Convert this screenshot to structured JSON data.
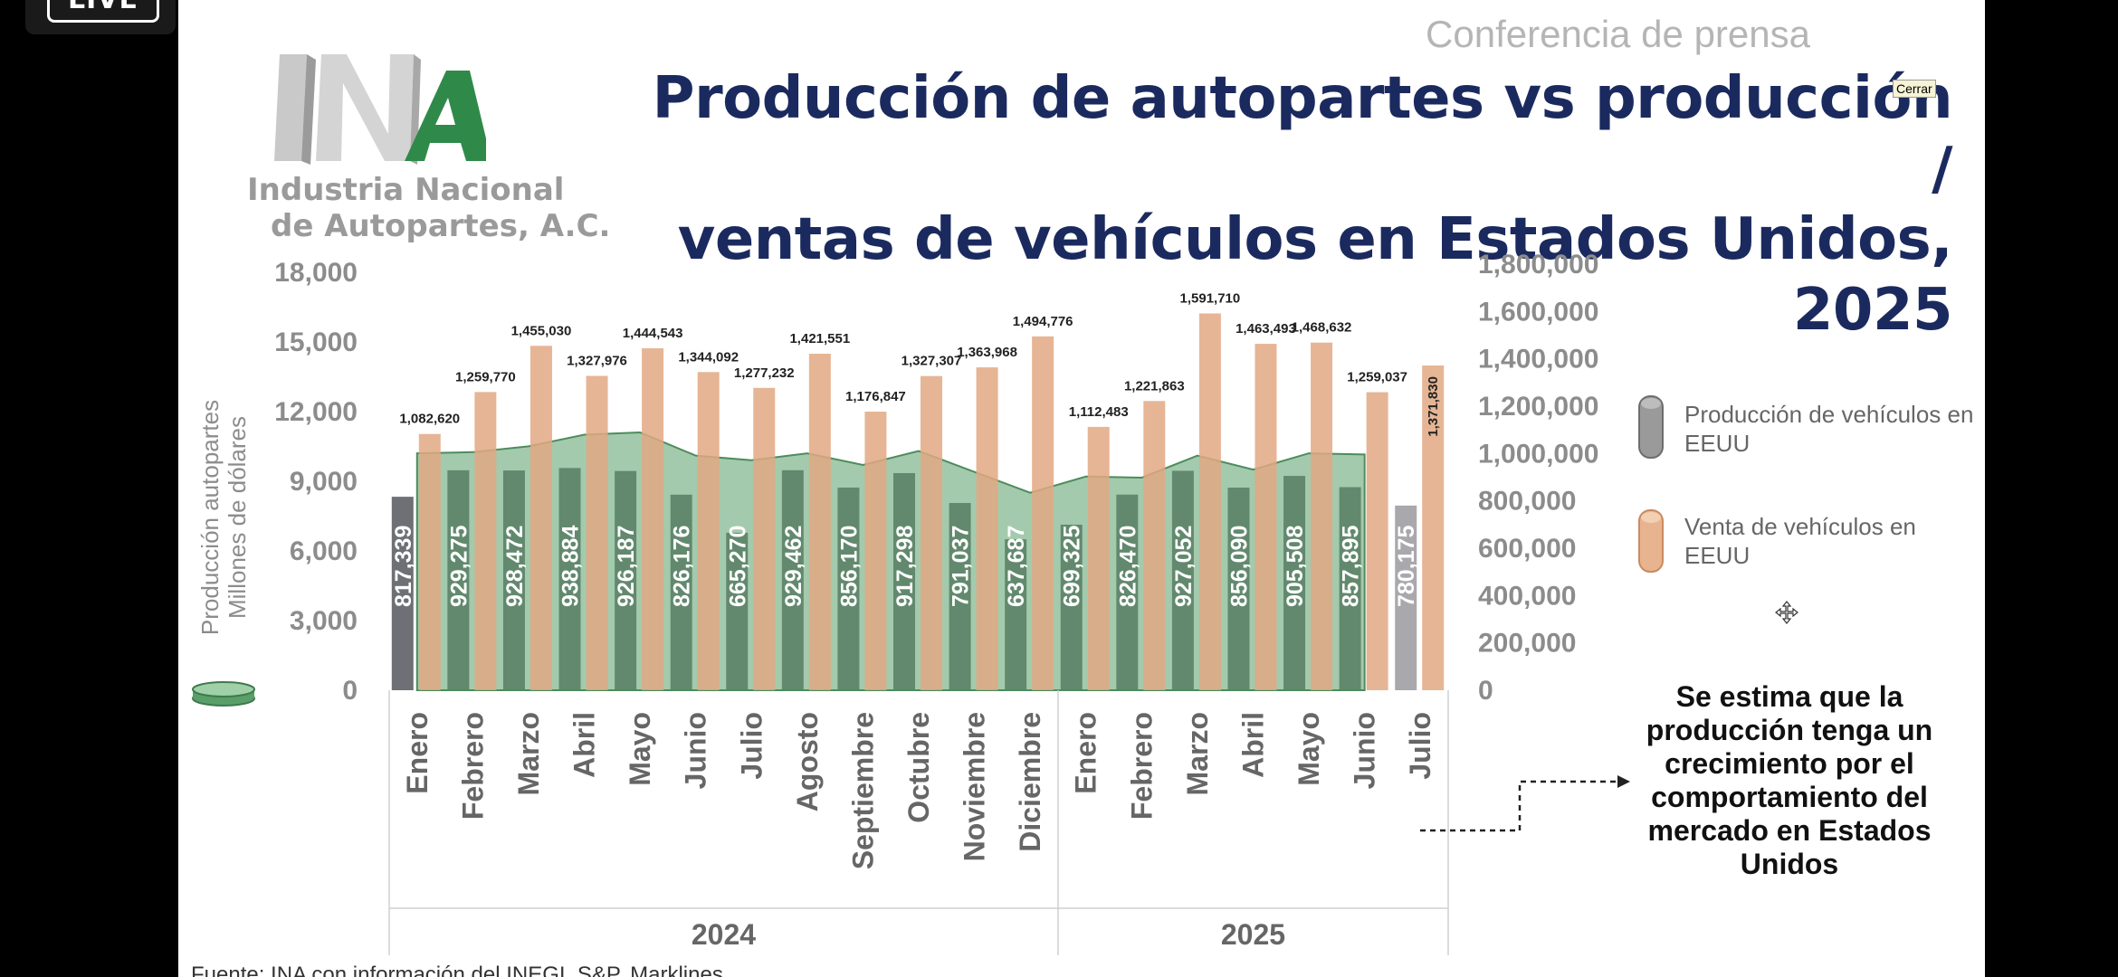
{
  "live_badge": "LIVE",
  "header": {
    "conference": "Conferencia de prensa",
    "title_line1": "Producción de autopartes vs producción /",
    "title_line2": "ventas de vehículos en Estados Unidos, 2025",
    "close_tooltip": "Cerrar"
  },
  "logo": {
    "monogram": "INA",
    "line1": "Industria Nacional",
    "line2": "de Autopartes, A.C."
  },
  "colors": {
    "production_bar": "#8a8a8a",
    "sales_bar": "#e2a882",
    "autoparts_area": "#5a9e6a",
    "title": "#1b2a5e"
  },
  "chart_data": {
    "type": "bar",
    "left_axis_label_line1": "Producción autopartes",
    "left_axis_label_line2": "Millones de dólares",
    "left_ylim": [
      0,
      19200
    ],
    "left_ticks": [
      "0",
      "3,000",
      "6,000",
      "9,000",
      "12,000",
      "15,000",
      "18,000"
    ],
    "right_ylim": [
      0,
      1800000
    ],
    "right_ticks": [
      "0",
      "200,000",
      "400,000",
      "600,000",
      "800,000",
      "1,000,000",
      "1,200,000",
      "1,400,000",
      "1,600,000",
      "1,800,000"
    ],
    "grid": false,
    "categories": [
      "Enero",
      "Febrero",
      "Marzo",
      "Abril",
      "Mayo",
      "Junio",
      "Julio",
      "Agosto",
      "Septiembre",
      "Octubre",
      "Noviembre",
      "Diciembre",
      "Enero",
      "Febrero",
      "Marzo",
      "Abril",
      "Mayo",
      "Junio",
      "Julio"
    ],
    "groups": [
      {
        "label": "2024",
        "count": 12
      },
      {
        "label": "2025",
        "count": 7
      }
    ],
    "series": [
      {
        "name": "Producción de vehículos en EEUU",
        "axis": "right",
        "values": [
          817339,
          929275,
          928472,
          938884,
          926187,
          826176,
          665270,
          929462,
          856170,
          917298,
          791037,
          637687,
          699325,
          826470,
          927052,
          856090,
          905508,
          857895,
          780175
        ],
        "labels": [
          "817,339",
          "929,275",
          "928,472",
          "938,884",
          "926,187",
          "826,176",
          "665,270",
          "929,462",
          "856,170",
          "917,298",
          "791,037",
          "637,687",
          "699,325",
          "826,470",
          "927,052",
          "856,090",
          "905,508",
          "857,895",
          "780,175"
        ]
      },
      {
        "name": "Venta de vehículos en EEUU",
        "axis": "right",
        "values": [
          1082620,
          1259770,
          1455030,
          1327976,
          1444543,
          1344092,
          1277232,
          1421551,
          1176847,
          1327307,
          1363968,
          1494776,
          1112483,
          1221863,
          1591710,
          1463493,
          1468632,
          1259037,
          1371830
        ],
        "labels": [
          "1,082,620",
          "1,259,770",
          "1,455,030",
          "1,327,976",
          "1,444,543",
          "1,344,092",
          "1,277,232",
          "1,421,551",
          "1,176,847",
          "1,327,307",
          "1,363,968",
          "1,494,776",
          "1,112,483",
          "1,221,863",
          "1,591,710",
          "1,463,493",
          "1,468,632",
          "1,259,037",
          "1,371,830"
        ]
      },
      {
        "axis": "left",
        "type": "area",
        "values": [
          10200,
          10250,
          10500,
          11000,
          11100,
          10100,
          9900,
          10200,
          9700,
          10300,
          9400,
          8500,
          9200,
          9150,
          10100,
          9500,
          10200,
          10150,
          null
        ]
      }
    ]
  },
  "note": {
    "line1": "Se estima que la",
    "line2": "producción tenga un",
    "line3": "crecimiento por el",
    "line4": "comportamiento del",
    "line5": "mercado en Estados",
    "line6": "Unidos"
  },
  "source": "Fuente: INA con información del INEGI, S&P, Marklines."
}
